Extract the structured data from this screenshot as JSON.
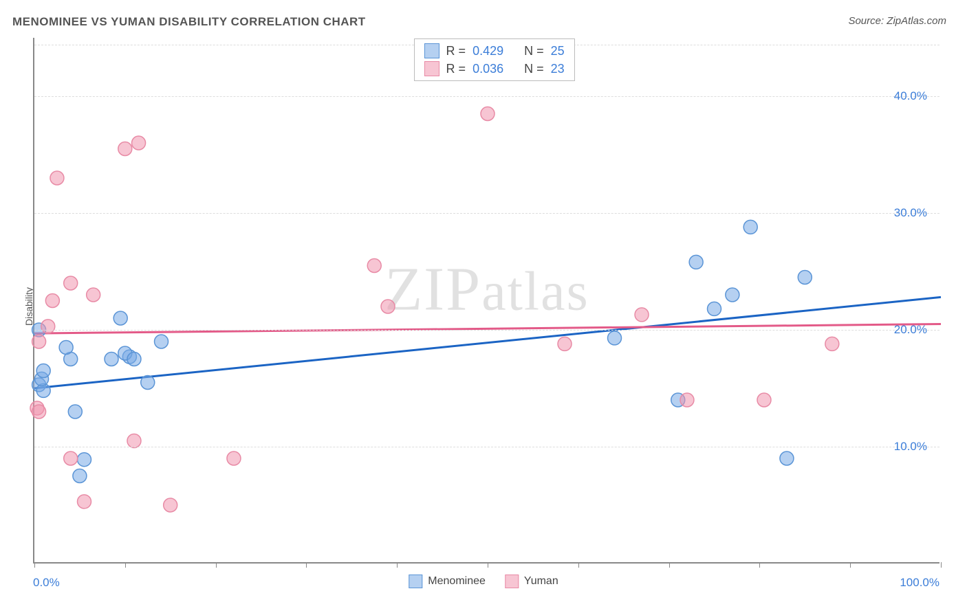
{
  "title": "MENOMINEE VS YUMAN DISABILITY CORRELATION CHART",
  "source_label": "Source: ZipAtlas.com",
  "watermark": "ZIPatlas",
  "ylabel": "Disability",
  "chart": {
    "type": "scatter",
    "xlim": [
      0,
      100
    ],
    "ylim": [
      0,
      45
    ],
    "x_axis_min_label": "0.0%",
    "x_axis_max_label": "100.0%",
    "y_ticks": [
      10.0,
      20.0,
      30.0,
      40.0
    ],
    "y_tick_labels": [
      "10.0%",
      "20.0%",
      "30.0%",
      "40.0%"
    ],
    "x_tick_positions": [
      0,
      10,
      20,
      30,
      40,
      50,
      60,
      70,
      80,
      90,
      100
    ],
    "grid_color": "#dddddd",
    "background_color": "#ffffff",
    "axis_color": "#888888",
    "tick_label_color": "#3b7dd8",
    "series": [
      {
        "name": "Menominee",
        "fill": "rgba(120,170,230,0.55)",
        "stroke": "#5a94d6",
        "marker_radius": 10,
        "trend_color": "#1b64c4",
        "trend_y_at_xmin": 15.0,
        "trend_y_at_xmax": 22.8,
        "R": "0.429",
        "N": "25",
        "points": [
          {
            "x": 0.5,
            "y": 15.3
          },
          {
            "x": 4.0,
            "y": 17.5
          },
          {
            "x": 9.5,
            "y": 21.0
          },
          {
            "x": 3.5,
            "y": 18.5
          },
          {
            "x": 8.5,
            "y": 17.5
          },
          {
            "x": 10.5,
            "y": 17.7
          },
          {
            "x": 10.0,
            "y": 18.0
          },
          {
            "x": 1.0,
            "y": 14.8
          },
          {
            "x": 0.8,
            "y": 15.8
          },
          {
            "x": 4.5,
            "y": 13.0
          },
          {
            "x": 5.0,
            "y": 7.5
          },
          {
            "x": 5.5,
            "y": 8.9
          },
          {
            "x": 12.5,
            "y": 15.5
          },
          {
            "x": 14.0,
            "y": 19.0
          },
          {
            "x": 1.0,
            "y": 16.5
          },
          {
            "x": 64.0,
            "y": 19.3
          },
          {
            "x": 71.0,
            "y": 14.0
          },
          {
            "x": 73.0,
            "y": 25.8
          },
          {
            "x": 77.0,
            "y": 23.0
          },
          {
            "x": 79.0,
            "y": 28.8
          },
          {
            "x": 85.0,
            "y": 24.5
          },
          {
            "x": 83.0,
            "y": 9.0
          },
          {
            "x": 11.0,
            "y": 17.5
          },
          {
            "x": 0.5,
            "y": 20.0
          },
          {
            "x": 75.0,
            "y": 21.8
          }
        ]
      },
      {
        "name": "Yuman",
        "fill": "rgba(240,150,175,0.55)",
        "stroke": "#e88aa5",
        "marker_radius": 10,
        "trend_color": "#e35a88",
        "trend_y_at_xmin": 19.7,
        "trend_y_at_xmax": 20.5,
        "R": "0.036",
        "N": "23",
        "points": [
          {
            "x": 2.5,
            "y": 33.0
          },
          {
            "x": 10.0,
            "y": 35.5
          },
          {
            "x": 11.5,
            "y": 36.0
          },
          {
            "x": 4.0,
            "y": 24.0
          },
          {
            "x": 6.5,
            "y": 23.0
          },
          {
            "x": 1.5,
            "y": 20.3
          },
          {
            "x": 2.0,
            "y": 22.5
          },
          {
            "x": 0.5,
            "y": 19.0
          },
          {
            "x": 0.3,
            "y": 13.3
          },
          {
            "x": 0.5,
            "y": 13.0
          },
          {
            "x": 4.0,
            "y": 9.0
          },
          {
            "x": 11.0,
            "y": 10.5
          },
          {
            "x": 5.5,
            "y": 5.3
          },
          {
            "x": 15.0,
            "y": 5.0
          },
          {
            "x": 22.0,
            "y": 9.0
          },
          {
            "x": 37.5,
            "y": 25.5
          },
          {
            "x": 39.0,
            "y": 22.0
          },
          {
            "x": 50.0,
            "y": 38.5
          },
          {
            "x": 58.5,
            "y": 18.8
          },
          {
            "x": 67.0,
            "y": 21.3
          },
          {
            "x": 72.0,
            "y": 14.0
          },
          {
            "x": 80.5,
            "y": 14.0
          },
          {
            "x": 88.0,
            "y": 18.8
          }
        ]
      }
    ]
  },
  "stats_box": {
    "rows": [
      {
        "swatch_fill": "rgba(120,170,230,0.55)",
        "swatch_stroke": "#5a94d6",
        "R_label": "R =",
        "R": "0.429",
        "N_label": "N =",
        "N": "25"
      },
      {
        "swatch_fill": "rgba(240,150,175,0.55)",
        "swatch_stroke": "#e88aa5",
        "R_label": "R =",
        "R": "0.036",
        "N_label": "N =",
        "N": "23"
      }
    ]
  },
  "bottom_legend": [
    {
      "label": "Menominee",
      "fill": "rgba(120,170,230,0.55)",
      "stroke": "#5a94d6"
    },
    {
      "label": "Yuman",
      "fill": "rgba(240,150,175,0.55)",
      "stroke": "#e88aa5"
    }
  ]
}
